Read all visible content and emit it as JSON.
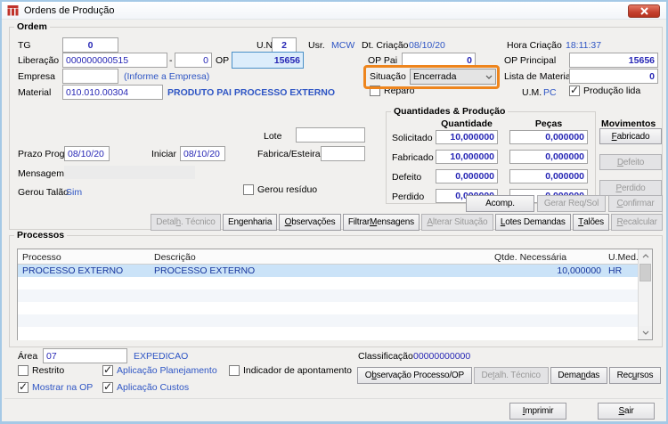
{
  "colors": {
    "frame": "#a5c9e6",
    "titlebar": "#fdfdfd",
    "client": "#f1f0ee",
    "navy": "#2727b5",
    "info": "#2e55c4",
    "opbg": "#dcedfb",
    "opbd": "#4a90c8",
    "orange": "#ee851d",
    "selbg": "#cbe3f8",
    "seltx": "#16359c",
    "stripe": "#f3f6fa",
    "closered": "#d0473a",
    "iconred": "#c0332b"
  },
  "win": {
    "title": "Ordens de Produção"
  },
  "ordem": {
    "group_label": "Ordem",
    "tg": {
      "label": "TG",
      "value": "0"
    },
    "un": {
      "label": "U.N.",
      "value": "2"
    },
    "usr": {
      "label": "Usr.",
      "value": "MCW"
    },
    "dt_criacao": {
      "label": "Dt. Criação",
      "value": "08/10/20"
    },
    "hora_criacao": {
      "label": "Hora Criação",
      "value": "18:11:37"
    },
    "liberacao": {
      "label": "Liberação",
      "value": "000000000515",
      "sep": "-",
      "value2": "0"
    },
    "op": {
      "label": "OP",
      "value": "15656"
    },
    "op_pai": {
      "label": "OP Pai",
      "value": "0"
    },
    "op_principal": {
      "label": "OP Principal",
      "value": "15656"
    },
    "empresa": {
      "label": "Empresa",
      "value": "",
      "hint": "(Informe a Empresa)"
    },
    "situacao": {
      "label": "Situação",
      "value": "Encerrada"
    },
    "lista_materiais": {
      "label": "Lista de Materiais",
      "value": "0"
    },
    "material": {
      "label": "Material",
      "value": "010.010.00304",
      "descricao": "PRODUTO PAI PROCESSO EXTERNO"
    },
    "reparo": {
      "label": "Reparo",
      "checked": false
    },
    "um": {
      "label": "U.M.",
      "value": "PC"
    },
    "producao_lida": {
      "label": "Produção lida",
      "checked": true
    },
    "quantidades": {
      "group_label": "Quantidades & Produção",
      "col_quantidade": "Quantidade",
      "col_pecas": "Peças",
      "rows": [
        {
          "label": "Solicitado",
          "quantidade": "10,000000",
          "pecas": "0,000000"
        },
        {
          "label": "Fabricado",
          "quantidade": "10,000000",
          "pecas": "0,000000"
        },
        {
          "label": "Defeito",
          "quantidade": "0,000000",
          "pecas": "0,000000"
        },
        {
          "label": "Perdido",
          "quantidade": "0,000000",
          "pecas": "0,000000"
        }
      ]
    },
    "movimentos": {
      "label": "Movimentos",
      "buttons": [
        {
          "label": "Fabricado",
          "u": "F",
          "disabled": false
        },
        {
          "label": "Defeito",
          "u": "D",
          "disabled": true
        },
        {
          "label": "Perdido",
          "u": "P",
          "disabled": true
        }
      ]
    },
    "lote": {
      "label": "Lote",
      "value": ""
    },
    "prazo_progr": {
      "label": "Prazo Progr.",
      "value": "08/10/20"
    },
    "iniciar": {
      "label": "Iniciar",
      "value": "08/10/20"
    },
    "fabrica_esteira": {
      "label": "Fabrica/Esteira",
      "value": ""
    },
    "mensagem": {
      "label": "Mensagem",
      "value": ""
    },
    "gerou_talao": {
      "label": "Gerou Talão",
      "value": "Sim"
    },
    "gerou_residuo": {
      "label": "Gerou resíduo",
      "checked": false
    },
    "action_buttons_top": [
      {
        "label": "Acomp.",
        "disabled": false
      },
      {
        "label": "Gerar Req/Sol",
        "disabled": true
      },
      {
        "label": "Confirmar",
        "u": "C",
        "disabled": true
      }
    ],
    "action_buttons": [
      {
        "label": "Detalh. Técnico",
        "u": "h",
        "disabled": true
      },
      {
        "label": "Engenharia",
        "disabled": false
      },
      {
        "label": "Observações",
        "u": "O",
        "disabled": false
      },
      {
        "label": "Filtrar Mensagens",
        "u": "M",
        "disabled": false
      },
      {
        "label": "Alterar Situação",
        "u": "A",
        "disabled": true
      },
      {
        "label": "Lotes Demandas",
        "u": "L",
        "disabled": false
      },
      {
        "label": "Talões",
        "u": "T",
        "disabled": false
      },
      {
        "label": "Recalcular",
        "u": "R",
        "disabled": true
      }
    ]
  },
  "processos": {
    "group_label": "Processos",
    "table": {
      "columns": [
        "Processo",
        "Descrição",
        "Qtde. Necessária",
        "U.Med."
      ],
      "rows": [
        {
          "processo": "PROCESSO EXTERNO",
          "descricao": "PROCESSO EXTERNO",
          "qtde": "10,000000",
          "umed": "HR",
          "selected": true
        }
      ]
    },
    "area": {
      "label": "Área",
      "value": "07",
      "descricao": "EXPEDICAO"
    },
    "classificacao": {
      "label": "Classificação",
      "value": "00000000000"
    },
    "checkboxes": [
      {
        "label": "Restrito",
        "checked": false
      },
      {
        "label": "Aplicação Planejamento",
        "checked": true
      },
      {
        "label": "Indicador de apontamento",
        "checked": false
      },
      {
        "label": "Mostrar na OP",
        "checked": true
      },
      {
        "label": "Aplicação Custos",
        "checked": true
      }
    ],
    "buttons": [
      {
        "label": "Observação Processo/OP",
        "u": "b",
        "disabled": false
      },
      {
        "label": "Detalh. Técnico",
        "u": "t",
        "disabled": true
      },
      {
        "label": "Demandas",
        "u": "n",
        "disabled": false
      },
      {
        "label": "Recursos",
        "u": "u",
        "disabled": false
      }
    ]
  },
  "footer": {
    "buttons": [
      {
        "label": "Imprimir",
        "u": "I",
        "disabled": false
      },
      {
        "label": "Sair",
        "u": "S",
        "disabled": false
      }
    ]
  }
}
